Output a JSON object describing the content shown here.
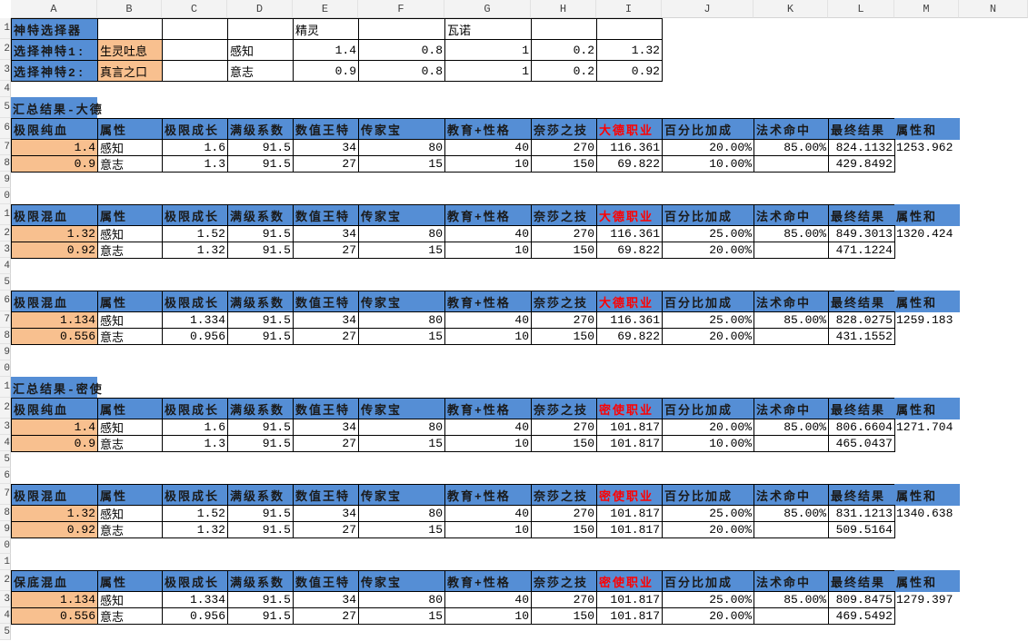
{
  "columns": [
    "A",
    "B",
    "C",
    "D",
    "E",
    "F",
    "G",
    "H",
    "I",
    "J",
    "K",
    "L",
    "M",
    "N"
  ],
  "selector": {
    "title": "神特选择器",
    "race1": "精灵",
    "race2": "瓦诺",
    "rows": [
      {
        "label": "选择神特1:",
        "name": "生灵吐息",
        "attr": "感知",
        "values": [
          "1.4",
          "0.8",
          "1",
          "0.2",
          "1.32"
        ]
      },
      {
        "label": "选择神特2:",
        "name": "真言之口",
        "attr": "意志",
        "values": [
          "0.9",
          "0.8",
          "1",
          "0.2",
          "0.92"
        ]
      }
    ]
  },
  "section_titles": [
    "汇总结果-大德",
    "汇总结果-密使"
  ],
  "tables": [
    {
      "header": [
        "极限纯血",
        "属性",
        "极限成长",
        "满级系数",
        "数值王特",
        "传家宝",
        "教育+性格",
        "奈莎之技",
        "大德职业",
        "百分比加成",
        "法术命中",
        "最终结果",
        "属性和"
      ],
      "rows": [
        [
          "1.4",
          "感知",
          "1.6",
          "91.5",
          "34",
          "80",
          "40",
          "270",
          "116.361",
          "20.00%",
          "85.00%",
          "824.1132",
          "1253.962"
        ],
        [
          "0.9",
          "意志",
          "1.3",
          "91.5",
          "27",
          "15",
          "10",
          "150",
          "69.822",
          "10.00%",
          "",
          "429.8492",
          ""
        ]
      ]
    },
    {
      "header": [
        "极限混血",
        "属性",
        "极限成长",
        "满级系数",
        "数值王特",
        "传家宝",
        "教育+性格",
        "奈莎之技",
        "大德职业",
        "百分比加成",
        "法术命中",
        "最终结果",
        "属性和"
      ],
      "rows": [
        [
          "1.32",
          "感知",
          "1.52",
          "91.5",
          "34",
          "80",
          "40",
          "270",
          "116.361",
          "25.00%",
          "85.00%",
          "849.3013",
          "1320.424"
        ],
        [
          "0.92",
          "意志",
          "1.32",
          "91.5",
          "27",
          "15",
          "10",
          "150",
          "69.822",
          "20.00%",
          "",
          "471.1224",
          ""
        ]
      ]
    },
    {
      "header": [
        "极限混血",
        "属性",
        "极限成长",
        "满级系数",
        "数值王特",
        "传家宝",
        "教育+性格",
        "奈莎之技",
        "大德职业",
        "百分比加成",
        "法术命中",
        "最终结果",
        "属性和"
      ],
      "rows": [
        [
          "1.134",
          "感知",
          "1.334",
          "91.5",
          "34",
          "80",
          "40",
          "270",
          "116.361",
          "25.00%",
          "85.00%",
          "828.0275",
          "1259.183"
        ],
        [
          "0.556",
          "意志",
          "0.956",
          "91.5",
          "27",
          "15",
          "10",
          "150",
          "69.822",
          "20.00%",
          "",
          "431.1552",
          ""
        ]
      ]
    },
    {
      "header": [
        "极限纯血",
        "属性",
        "极限成长",
        "满级系数",
        "数值王特",
        "传家宝",
        "教育+性格",
        "奈莎之技",
        "密使职业",
        "百分比加成",
        "法术命中",
        "最终结果",
        "属性和"
      ],
      "rows": [
        [
          "1.4",
          "感知",
          "1.6",
          "91.5",
          "34",
          "80",
          "40",
          "270",
          "101.817",
          "20.00%",
          "85.00%",
          "806.6604",
          "1271.704"
        ],
        [
          "0.9",
          "意志",
          "1.3",
          "91.5",
          "27",
          "15",
          "10",
          "150",
          "101.817",
          "10.00%",
          "",
          "465.0437",
          ""
        ]
      ]
    },
    {
      "header": [
        "极限混血",
        "属性",
        "极限成长",
        "满级系数",
        "数值王特",
        "传家宝",
        "教育+性格",
        "奈莎之技",
        "密使职业",
        "百分比加成",
        "法术命中",
        "最终结果",
        "属性和"
      ],
      "rows": [
        [
          "1.32",
          "感知",
          "1.52",
          "91.5",
          "34",
          "80",
          "40",
          "270",
          "101.817",
          "25.00%",
          "85.00%",
          "831.1213",
          "1340.638"
        ],
        [
          "0.92",
          "意志",
          "1.32",
          "91.5",
          "27",
          "15",
          "10",
          "150",
          "101.817",
          "20.00%",
          "",
          "509.5164",
          ""
        ]
      ]
    },
    {
      "header": [
        "保底混血",
        "属性",
        "极限成长",
        "满级系数",
        "数值王特",
        "传家宝",
        "教育+性格",
        "奈莎之技",
        "密使职业",
        "百分比加成",
        "法术命中",
        "最终结果",
        "属性和"
      ],
      "rows": [
        [
          "1.134",
          "感知",
          "1.334",
          "91.5",
          "34",
          "80",
          "40",
          "270",
          "101.817",
          "25.00%",
          "85.00%",
          "809.8475",
          "1279.397"
        ],
        [
          "0.556",
          "意志",
          "0.956",
          "91.5",
          "27",
          "15",
          "10",
          "150",
          "101.817",
          "20.00%",
          "",
          "469.5492",
          ""
        ]
      ]
    }
  ],
  "colors": {
    "header_blue": "#558ed5",
    "input_orange": "#f8c08f",
    "class_red": "#ff0000"
  }
}
